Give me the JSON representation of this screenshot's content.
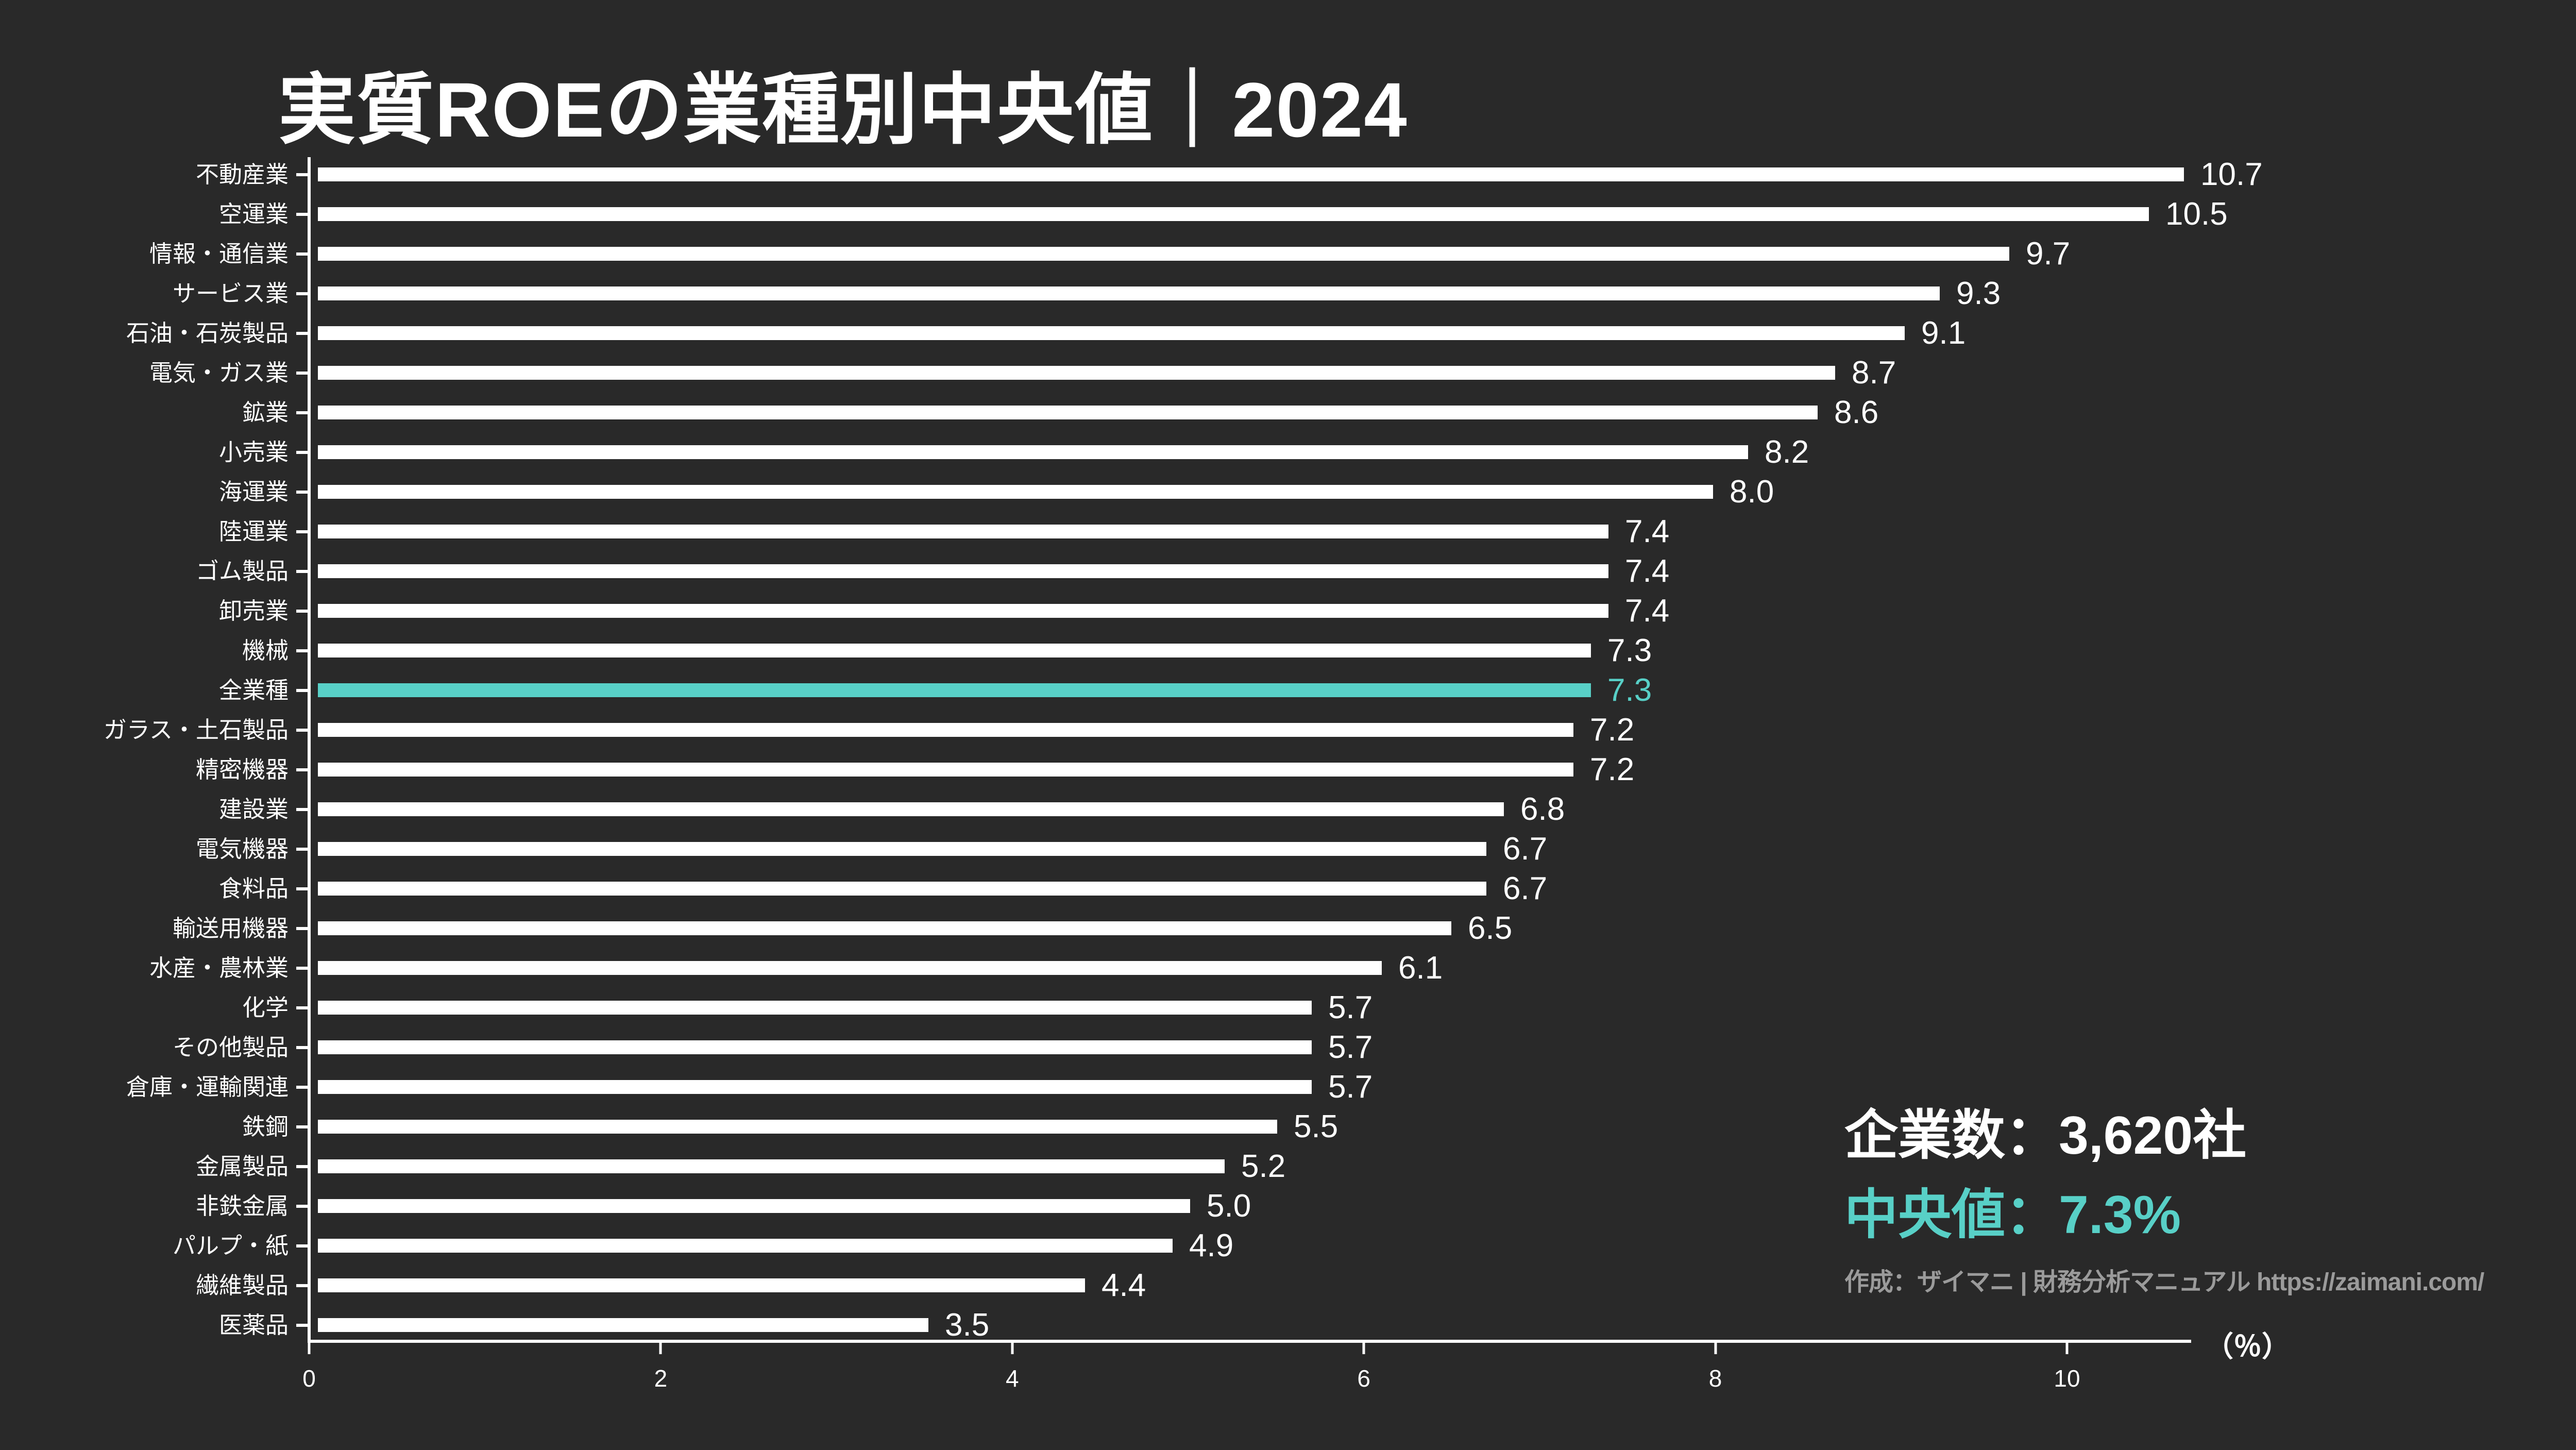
{
  "title": "実質ROEの業種別中央値｜2024",
  "chart_data": {
    "type": "bar",
    "orientation": "horizontal",
    "title": "実質ROEの業種別中央値｜2024",
    "xlabel": "（％）",
    "ylabel": "",
    "xlim": [
      0,
      10.7
    ],
    "x_ticks": [
      0,
      2,
      4,
      6,
      8,
      10
    ],
    "grid": false,
    "legend": "none",
    "categories": [
      "不動産業",
      "空運業",
      "情報・通信業",
      "サービス業",
      "石油・石炭製品",
      "電気・ガス業",
      "鉱業",
      "小売業",
      "海運業",
      "陸運業",
      "ゴム製品",
      "卸売業",
      "機械",
      "全業種",
      "ガラス・土石製品",
      "精密機器",
      "建設業",
      "電気機器",
      "食料品",
      "輸送用機器",
      "水産・農林業",
      "化学",
      "その他製品",
      "倉庫・運輸関連",
      "鉄鋼",
      "金属製品",
      "非鉄金属",
      "パルプ・紙",
      "繊維製品",
      "医薬品"
    ],
    "values": [
      10.7,
      10.5,
      9.7,
      9.3,
      9.1,
      8.7,
      8.6,
      8.2,
      8.0,
      7.4,
      7.4,
      7.4,
      7.3,
      7.3,
      7.2,
      7.2,
      6.8,
      6.7,
      6.7,
      6.5,
      6.1,
      5.7,
      5.7,
      5.7,
      5.5,
      5.2,
      5.0,
      4.9,
      4.4,
      3.5
    ],
    "highlight_category": "全業種",
    "bar_color": "#ffffff",
    "highlight_color": "#58d0c7"
  },
  "stats": {
    "companies": "企業数：3,620社",
    "median": "中央値：7.3%"
  },
  "attribution": "作成：ザイマニ | 財務分析マニュアル https://zaimani.com/",
  "colors": {
    "background": "#292929",
    "bar": "#ffffff",
    "accent": "#58d0c7",
    "text": "#ffffff",
    "muted_text": "#9b9b9b"
  }
}
